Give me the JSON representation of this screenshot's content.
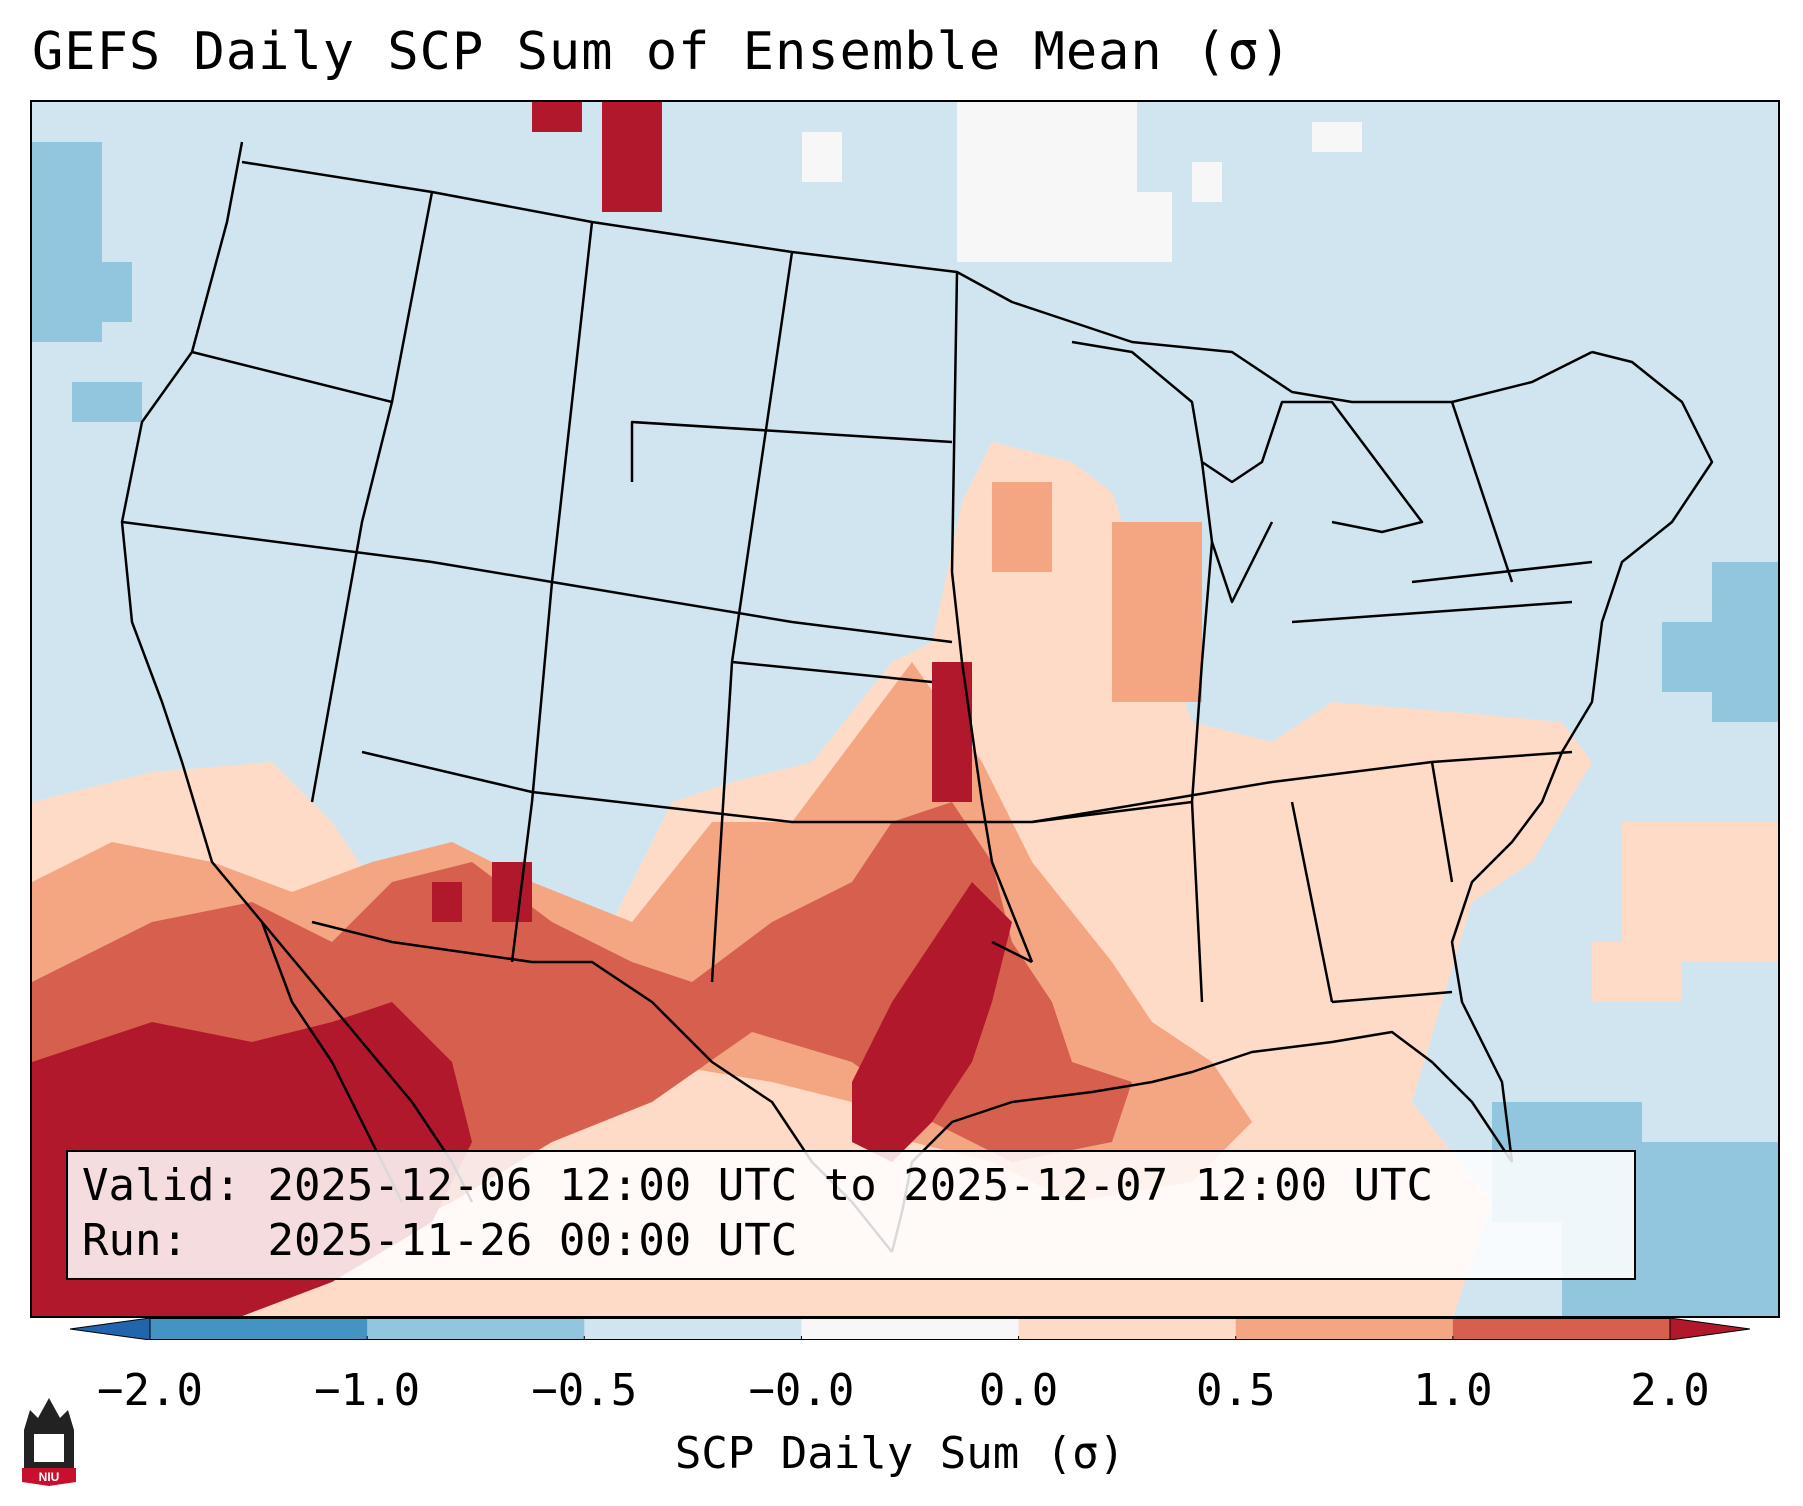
{
  "title": "GEFS Daily SCP Sum of Ensemble Mean (σ)",
  "info": {
    "valid_label": "Valid:",
    "valid_value": "2025-12-06 12:00 UTC to 2025-12-07 12:00 UTC",
    "run_label": "Run:",
    "run_value": "2025-11-26 00:00 UTC"
  },
  "colorbar": {
    "label": "SCP Daily Sum (σ)",
    "ticks": [
      "−2.0",
      "−1.0",
      "−0.5",
      "−0.0",
      "0.0",
      "0.5",
      "1.0",
      "2.0"
    ],
    "bins": [
      {
        "color": "#4393c3"
      },
      {
        "color": "#92c5de"
      },
      {
        "color": "#d1e5f0"
      },
      {
        "color": "#f7f7f7"
      },
      {
        "color": "#fddbc7"
      },
      {
        "color": "#f4a582"
      },
      {
        "color": "#d6604d"
      }
    ],
    "under_color": "#2166ac",
    "over_color": "#b2182b"
  },
  "map": {
    "background": "#d1e5f0",
    "land_outline_color": "#000000"
  },
  "logo": {
    "text": "NIU",
    "color": "#c8102e"
  }
}
